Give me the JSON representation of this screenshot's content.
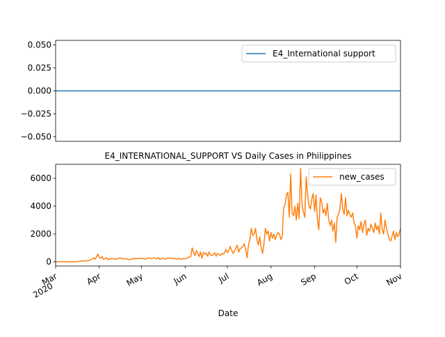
{
  "colors": {
    "series1": "#1f77b4",
    "series2": "#ff7f0e",
    "axis": "#000000",
    "legend_border": "#cccccc"
  },
  "chart_data": [
    {
      "type": "line",
      "title": "",
      "ylim": [
        -0.055,
        0.055
      ],
      "yticks": [
        -0.05,
        -0.025,
        0.0,
        0.025,
        0.05
      ],
      "ytick_labels": [
        "−0.050",
        "−0.025",
        "0.000",
        "0.025",
        "0.050"
      ],
      "legend": {
        "label": "E4_International support",
        "placement": "top-right"
      },
      "series": [
        {
          "name": "E4_International support",
          "value": 0
        }
      ]
    },
    {
      "type": "line",
      "title": "E4_INTERNATIONAL_SUPPORT VS Daily Cases in Philippines",
      "xlabel": "Date",
      "ylim": [
        -300,
        7000
      ],
      "yticks": [
        0,
        2000,
        4000,
        6000
      ],
      "ytick_labels": [
        "0",
        "2000",
        "4000",
        "6000"
      ],
      "xlim_days": [
        0,
        245
      ],
      "xticks": [
        {
          "day": 0,
          "label": "Mar",
          "sub": "2020"
        },
        {
          "day": 31,
          "label": "Apr",
          "sub": ""
        },
        {
          "day": 61,
          "label": "May",
          "sub": ""
        },
        {
          "day": 92,
          "label": "Jun",
          "sub": ""
        },
        {
          "day": 122,
          "label": "Jul",
          "sub": ""
        },
        {
          "day": 153,
          "label": "Aug",
          "sub": ""
        },
        {
          "day": 184,
          "label": "Sep",
          "sub": ""
        },
        {
          "day": 214,
          "label": "Oct",
          "sub": ""
        },
        {
          "day": 245,
          "label": "Nov",
          "sub": ""
        }
      ],
      "legend": {
        "label": "new_cases",
        "placement": "top-right"
      },
      "series": [
        {
          "name": "new_cases",
          "points": [
            [
              0,
              0
            ],
            [
              4,
              0
            ],
            [
              8,
              2
            ],
            [
              10,
              3
            ],
            [
              12,
              5
            ],
            [
              14,
              10
            ],
            [
              16,
              20
            ],
            [
              18,
              50
            ],
            [
              20,
              60
            ],
            [
              21,
              80
            ],
            [
              22,
              60
            ],
            [
              24,
              100
            ],
            [
              26,
              200
            ],
            [
              27,
              300
            ],
            [
              28,
              180
            ],
            [
              29,
              350
            ],
            [
              30,
              550
            ],
            [
              31,
              320
            ],
            [
              32,
              250
            ],
            [
              33,
              380
            ],
            [
              34,
              180
            ],
            [
              35,
              200
            ],
            [
              36,
              300
            ],
            [
              37,
              150
            ],
            [
              38,
              220
            ],
            [
              39,
              180
            ],
            [
              40,
              260
            ],
            [
              42,
              180
            ],
            [
              44,
              220
            ],
            [
              46,
              280
            ],
            [
              48,
              200
            ],
            [
              50,
              230
            ],
            [
              52,
              150
            ],
            [
              54,
              200
            ],
            [
              55,
              250
            ],
            [
              56,
              180
            ],
            [
              57,
              280
            ],
            [
              58,
              210
            ],
            [
              60,
              250
            ],
            [
              62,
              230
            ],
            [
              64,
              190
            ],
            [
              66,
              280
            ],
            [
              68,
              220
            ],
            [
              70,
              290
            ],
            [
              72,
              200
            ],
            [
              73,
              310
            ],
            [
              74,
              180
            ],
            [
              76,
              250
            ],
            [
              78,
              200
            ],
            [
              80,
              280
            ],
            [
              82,
              250
            ],
            [
              84,
              230
            ],
            [
              86,
              200
            ],
            [
              88,
              250
            ],
            [
              89,
              180
            ],
            [
              90,
              210
            ],
            [
              92,
              240
            ],
            [
              93,
              220
            ],
            [
              94,
              300
            ],
            [
              95,
              350
            ],
            [
              96,
              380
            ],
            [
              97,
              1000
            ],
            [
              98,
              680
            ],
            [
              99,
              450
            ],
            [
              100,
              800
            ],
            [
              101,
              600
            ],
            [
              102,
              380
            ],
            [
              103,
              700
            ],
            [
              104,
              250
            ],
            [
              105,
              680
            ],
            [
              106,
              550
            ],
            [
              107,
              620
            ],
            [
              108,
              400
            ],
            [
              109,
              700
            ],
            [
              110,
              500
            ],
            [
              111,
              450
            ],
            [
              112,
              520
            ],
            [
              113,
              650
            ],
            [
              114,
              400
            ],
            [
              115,
              600
            ],
            [
              116,
              520
            ],
            [
              117,
              450
            ],
            [
              118,
              600
            ],
            [
              119,
              550
            ],
            [
              120,
              650
            ],
            [
              121,
              900
            ],
            [
              122,
              650
            ],
            [
              123,
              800
            ],
            [
              124,
              1100
            ],
            [
              125,
              850
            ],
            [
              126,
              600
            ],
            [
              127,
              750
            ],
            [
              128,
              1000
            ],
            [
              129,
              1200
            ],
            [
              130,
              700
            ],
            [
              131,
              950
            ],
            [
              132,
              1000
            ],
            [
              133,
              1100
            ],
            [
              134,
              1300
            ],
            [
              135,
              900
            ],
            [
              136,
              300
            ],
            [
              137,
              1200
            ],
            [
              138,
              1600
            ],
            [
              139,
              2400
            ],
            [
              140,
              1900
            ],
            [
              141,
              2000
            ],
            [
              142,
              2400
            ],
            [
              143,
              1600
            ],
            [
              144,
              1200
            ],
            [
              145,
              1800
            ],
            [
              146,
              1000
            ],
            [
              147,
              600
            ],
            [
              148,
              1300
            ],
            [
              149,
              2400
            ],
            [
              150,
              2000
            ],
            [
              151,
              2200
            ],
            [
              152,
              1500
            ],
            [
              153,
              2100
            ],
            [
              154,
              1700
            ],
            [
              155,
              2000
            ],
            [
              156,
              1600
            ],
            [
              157,
              1900
            ],
            [
              158,
              2100
            ],
            [
              159,
              2000
            ],
            [
              160,
              1600
            ],
            [
              161,
              1800
            ],
            [
              162,
              3900
            ],
            [
              163,
              4100
            ],
            [
              164,
              4800
            ],
            [
              165,
              5000
            ],
            [
              166,
              3200
            ],
            [
              167,
              6300
            ],
            [
              168,
              3500
            ],
            [
              169,
              3300
            ],
            [
              170,
              4000
            ],
            [
              171,
              3000
            ],
            [
              172,
              4200
            ],
            [
              173,
              3100
            ],
            [
              174,
              6700
            ],
            [
              175,
              4200
            ],
            [
              176,
              3600
            ],
            [
              177,
              3200
            ],
            [
              178,
              6100
            ],
            [
              179,
              4800
            ],
            [
              180,
              4000
            ],
            [
              181,
              3800
            ],
            [
              182,
              4500
            ],
            [
              183,
              4900
            ],
            [
              184,
              3600
            ],
            [
              185,
              4800
            ],
            [
              186,
              3000
            ],
            [
              187,
              2300
            ],
            [
              188,
              4600
            ],
            [
              189,
              4300
            ],
            [
              190,
              3500
            ],
            [
              191,
              3800
            ],
            [
              192,
              3300
            ],
            [
              193,
              4200
            ],
            [
              194,
              3000
            ],
            [
              195,
              2600
            ],
            [
              196,
              3000
            ],
            [
              197,
              2200
            ],
            [
              198,
              2800
            ],
            [
              199,
              1400
            ],
            [
              200,
              3200
            ],
            [
              201,
              3400
            ],
            [
              202,
              3800
            ],
            [
              203,
              4900
            ],
            [
              204,
              3800
            ],
            [
              205,
              3400
            ],
            [
              206,
              4600
            ],
            [
              207,
              3300
            ],
            [
              208,
              3700
            ],
            [
              209,
              3400
            ],
            [
              210,
              3200
            ],
            [
              211,
              3500
            ],
            [
              212,
              2800
            ],
            [
              213,
              2600
            ],
            [
              214,
              1700
            ],
            [
              215,
              2600
            ],
            [
              216,
              2300
            ],
            [
              217,
              2900
            ],
            [
              218,
              2100
            ],
            [
              219,
              2700
            ],
            [
              220,
              3000
            ],
            [
              221,
              1900
            ],
            [
              222,
              2400
            ],
            [
              223,
              2200
            ],
            [
              224,
              2700
            ],
            [
              225,
              2400
            ],
            [
              226,
              2100
            ],
            [
              227,
              2800
            ],
            [
              228,
              2300
            ],
            [
              229,
              2600
            ],
            [
              230,
              2000
            ],
            [
              231,
              3500
            ],
            [
              232,
              2300
            ],
            [
              233,
              2000
            ],
            [
              234,
              3000
            ],
            [
              235,
              2400
            ],
            [
              236,
              2000
            ],
            [
              237,
              1600
            ],
            [
              238,
              1500
            ],
            [
              239,
              1800
            ],
            [
              240,
              2200
            ],
            [
              241,
              1600
            ],
            [
              242,
              2100
            ],
            [
              243,
              1800
            ],
            [
              244,
              2000
            ],
            [
              245,
              2400
            ]
          ]
        }
      ]
    }
  ]
}
